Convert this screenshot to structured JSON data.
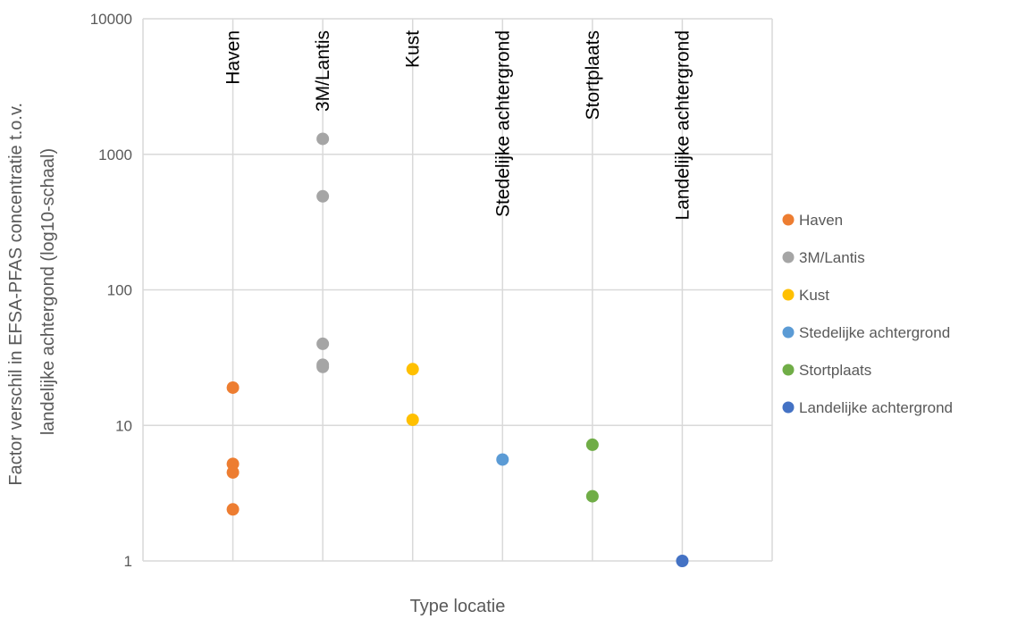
{
  "chart_data": {
    "type": "scatter",
    "title": "",
    "xlabel": "Type locatie",
    "ylabel": "Factor verschil in EFSA-PFAS concentratie t.o.v. landelijke achtergond (log10-schaal)",
    "ylabel_lines": [
      "Factor verschil in EFSA-PFAS concentratie t.o.v.",
      "landelijke achtergond (log10-schaal)"
    ],
    "y_scale": "log10",
    "ylim": [
      1,
      10000
    ],
    "y_ticks": [
      "1",
      "10",
      "100",
      "1000",
      "10000"
    ],
    "grid": true,
    "legend_position": "right",
    "categories": [
      "Haven",
      "3M/Lantis",
      "Kust",
      "Stedelijke achtergrond",
      "Stortplaats",
      "Landelijke achtergrond"
    ],
    "series": [
      {
        "name": "Haven",
        "color": "#ED7D31",
        "x": [
          1,
          1,
          1,
          1
        ],
        "y": [
          19,
          5.2,
          4.5,
          2.4
        ]
      },
      {
        "name": "3M/Lantis",
        "color": "#A5A5A5",
        "x": [
          2,
          2,
          2,
          2,
          2
        ],
        "y": [
          1300,
          490,
          40,
          28,
          27
        ]
      },
      {
        "name": "Kust",
        "color": "#FFC000",
        "x": [
          3,
          3
        ],
        "y": [
          26,
          11
        ]
      },
      {
        "name": "Stedelijke achtergrond",
        "color": "#5B9BD5",
        "x": [
          4
        ],
        "y": [
          5.6
        ]
      },
      {
        "name": "Stortplaats",
        "color": "#70AD47",
        "x": [
          5,
          5
        ],
        "y": [
          7.2,
          3
        ]
      },
      {
        "name": "Landelijke achtergrond",
        "color": "#4472C4",
        "x": [
          6
        ],
        "y": [
          1
        ]
      }
    ]
  }
}
